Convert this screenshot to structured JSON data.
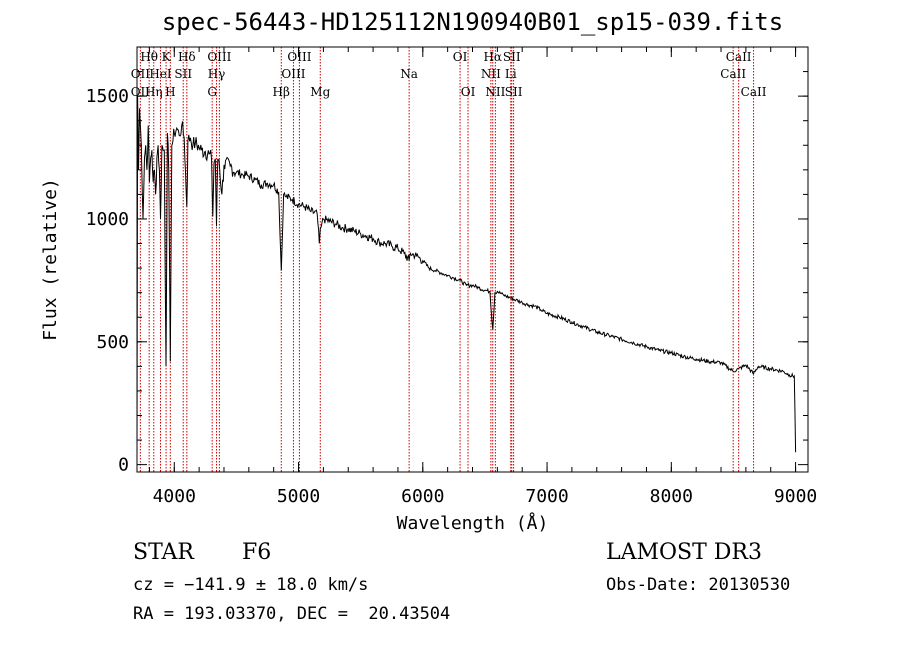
{
  "chart_data": {
    "type": "line",
    "title": "spec-56443-HD125112N190940B01_sp15-039.fits",
    "xlabel": "Wavelength (Å)",
    "ylabel": "Flux (relative)",
    "xlim": [
      3700,
      9100
    ],
    "ylim": [
      -30,
      1700
    ],
    "xticks": [
      4000,
      5000,
      6000,
      7000,
      8000,
      9000
    ],
    "yticks": [
      0,
      500,
      1000,
      1500
    ],
    "series": [
      {
        "name": "flux",
        "x": [
          3700,
          3705,
          3712,
          3720,
          3735,
          3748,
          3760,
          3770,
          3780,
          3790,
          3800,
          3810,
          3820,
          3830,
          3840,
          3850,
          3860,
          3870,
          3880,
          3889,
          3900,
          3910,
          3920,
          3933,
          3945,
          3955,
          3968,
          3980,
          3990,
          4000,
          4020,
          4040,
          4060,
          4080,
          4101,
          4110,
          4130,
          4150,
          4170,
          4200,
          4220,
          4250,
          4280,
          4300,
          4310,
          4320,
          4330,
          4340,
          4350,
          4360,
          4383,
          4400,
          4450,
          4500,
          4550,
          4600,
          4650,
          4700,
          4750,
          4800,
          4840,
          4861,
          4880,
          4900,
          4950,
          5000,
          5050,
          5100,
          5150,
          5167,
          5175,
          5183,
          5200,
          5250,
          5300,
          5350,
          5400,
          5450,
          5500,
          5550,
          5600,
          5650,
          5700,
          5750,
          5800,
          5850,
          5890,
          5900,
          5950,
          6000,
          6050,
          6100,
          6150,
          6200,
          6250,
          6300,
          6350,
          6400,
          6450,
          6500,
          6540,
          6563,
          6580,
          6600,
          6650,
          6700,
          6750,
          6800,
          6850,
          6900,
          6950,
          7000,
          7100,
          7200,
          7300,
          7400,
          7500,
          7600,
          7700,
          7800,
          7900,
          8000,
          8100,
          8200,
          8300,
          8400,
          8498,
          8542,
          8600,
          8662,
          8700,
          8800,
          8900,
          8950,
          8990,
          9000
        ],
        "y": [
          50,
          1500,
          1200,
          1450,
          1300,
          1000,
          1250,
          1300,
          1200,
          1380,
          1150,
          1250,
          1280,
          1150,
          1200,
          1100,
          1250,
          1300,
          1200,
          1000,
          1300,
          1280,
          1280,
          400,
          1350,
          1200,
          420,
          1300,
          1320,
          1350,
          1370,
          1340,
          1380,
          1330,
          1050,
          1320,
          1330,
          1300,
          1310,
          1290,
          1280,
          1275,
          1265,
          1240,
          1010,
          1230,
          1245,
          970,
          1245,
          1240,
          1100,
          1220,
          1215,
          1190,
          1180,
          1175,
          1160,
          1140,
          1145,
          1140,
          1110,
          790,
          1100,
          1090,
          1080,
          1060,
          1050,
          1030,
          1020,
          900,
          960,
          970,
          1000,
          990,
          980,
          965,
          960,
          950,
          940,
          930,
          920,
          905,
          900,
          890,
          880,
          860,
          830,
          860,
          850,
          830,
          800,
          790,
          780,
          770,
          760,
          750,
          730,
          730,
          720,
          710,
          705,
          550,
          700,
          705,
          690,
          680,
          670,
          660,
          650,
          645,
          630,
          615,
          600,
          580,
          560,
          540,
          525,
          510,
          495,
          480,
          465,
          455,
          440,
          430,
          420,
          415,
          380,
          390,
          405,
          370,
          400,
          390,
          380,
          365,
          360,
          50
        ]
      }
    ],
    "line_labels": [
      {
        "label": "OII",
        "x": 3727,
        "row": 2
      },
      {
        "label": "OII",
        "x": 3727,
        "row": 3
      },
      {
        "label": "Hθ",
        "x": 3798,
        "row": 1
      },
      {
        "label": "Hη",
        "x": 3835,
        "row": 3
      },
      {
        "label": "HeI",
        "x": 3889,
        "row": 2
      },
      {
        "label": "K",
        "x": 3934,
        "row": 1
      },
      {
        "label": "H",
        "x": 3968,
        "row": 3
      },
      {
        "label": "SII",
        "x": 4072,
        "row": 2
      },
      {
        "label": "Hδ",
        "x": 4101,
        "row": 1
      },
      {
        "label": "G",
        "x": 4305,
        "row": 3
      },
      {
        "label": "OIII",
        "x": 4363,
        "row": 1
      },
      {
        "label": "Hγ",
        "x": 4340,
        "row": 2
      },
      {
        "label": "Hβ",
        "x": 4861,
        "row": 3
      },
      {
        "label": "OIII",
        "x": 4959,
        "row": 2
      },
      {
        "label": "OIII",
        "x": 5007,
        "row": 1
      },
      {
        "label": "Mg",
        "x": 5175,
        "row": 3
      },
      {
        "label": "Na",
        "x": 5890,
        "row": 2
      },
      {
        "label": "OI",
        "x": 6300,
        "row": 1
      },
      {
        "label": "OI",
        "x": 6364,
        "row": 3
      },
      {
        "label": "NII",
        "x": 6548,
        "row": 2
      },
      {
        "label": "Hα",
        "x": 6563,
        "row": 1
      },
      {
        "label": "NII",
        "x": 6584,
        "row": 3
      },
      {
        "label": "SII",
        "x": 6716,
        "row": 1
      },
      {
        "label": "Li",
        "x": 6708,
        "row": 2
      },
      {
        "label": "SII",
        "x": 6731,
        "row": 3
      },
      {
        "label": "CaII",
        "x": 8498,
        "row": 2
      },
      {
        "label": "CaII",
        "x": 8542,
        "row": 1
      },
      {
        "label": "CaII",
        "x": 8662,
        "row": 3
      }
    ]
  },
  "info": {
    "class": "STAR",
    "subclass": "F6",
    "survey": "LAMOST DR3",
    "cz": "cz = −141.9 ± 18.0 km/s",
    "obs_date": "Obs-Date: 20130530",
    "coords": "RA = 193.03370, DEC =  20.43504"
  },
  "colors": {
    "line_marker": "#cc0000",
    "spectrum": "#000000"
  }
}
